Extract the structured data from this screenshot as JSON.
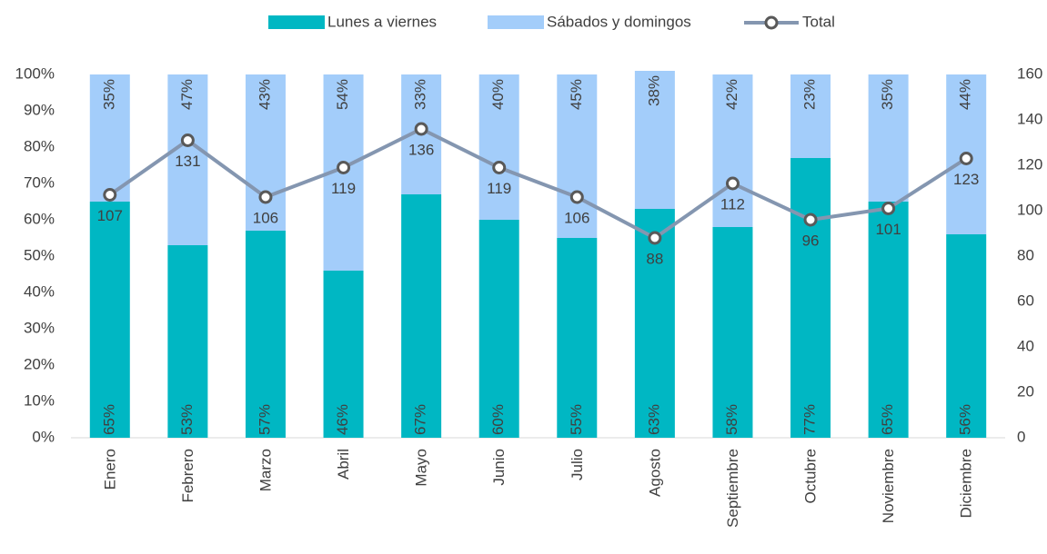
{
  "chart_data": {
    "type": "bar",
    "stacked": true,
    "categories": [
      "Enero",
      "Febrero",
      "Marzo",
      "Abril",
      "Mayo",
      "Junio",
      "Julio",
      "Agosto",
      "Septiembre",
      "Octubre",
      "Noviembre",
      "Diciembre"
    ],
    "series": [
      {
        "name": "Lunes a viernes",
        "color": "#00b7c3",
        "values": [
          65,
          53,
          57,
          46,
          67,
          60,
          55,
          63,
          58,
          77,
          65,
          56
        ],
        "value_labels": [
          "65%",
          "53%",
          "57%",
          "46%",
          "67%",
          "60%",
          "55%",
          "63%",
          "58%",
          "77%",
          "65%",
          "56%"
        ]
      },
      {
        "name": "Sábados y domingos",
        "color": "#a3cdfa",
        "values": [
          35,
          47,
          43,
          54,
          33,
          40,
          45,
          38,
          42,
          23,
          35,
          44
        ],
        "value_labels": [
          "35%",
          "47%",
          "43%",
          "54%",
          "33%",
          "40%",
          "45%",
          "38%",
          "42%",
          "23%",
          "35%",
          "44%"
        ]
      },
      {
        "name": "Total",
        "type": "line",
        "axis": "y2",
        "color": "#8496b0",
        "values": [
          107,
          131,
          106,
          119,
          136,
          119,
          106,
          88,
          112,
          96,
          101,
          123
        ]
      }
    ],
    "ylim": [
      0,
      100
    ],
    "yticks": [
      {
        "value": 0,
        "label": "0%"
      },
      {
        "value": 10,
        "label": "10%"
      },
      {
        "value": 20,
        "label": "20%"
      },
      {
        "value": 30,
        "label": "30%"
      },
      {
        "value": 40,
        "label": "40%"
      },
      {
        "value": 50,
        "label": "50%"
      },
      {
        "value": 60,
        "label": "60%"
      },
      {
        "value": 70,
        "label": "70%"
      },
      {
        "value": 80,
        "label": "80%"
      },
      {
        "value": 90,
        "label": "90%"
      },
      {
        "value": 100,
        "label": "100%"
      }
    ],
    "y2lim": [
      0,
      160
    ],
    "y2ticks": [
      0,
      20,
      40,
      60,
      80,
      100,
      120,
      140,
      160
    ],
    "legend": "top",
    "grid": false
  }
}
